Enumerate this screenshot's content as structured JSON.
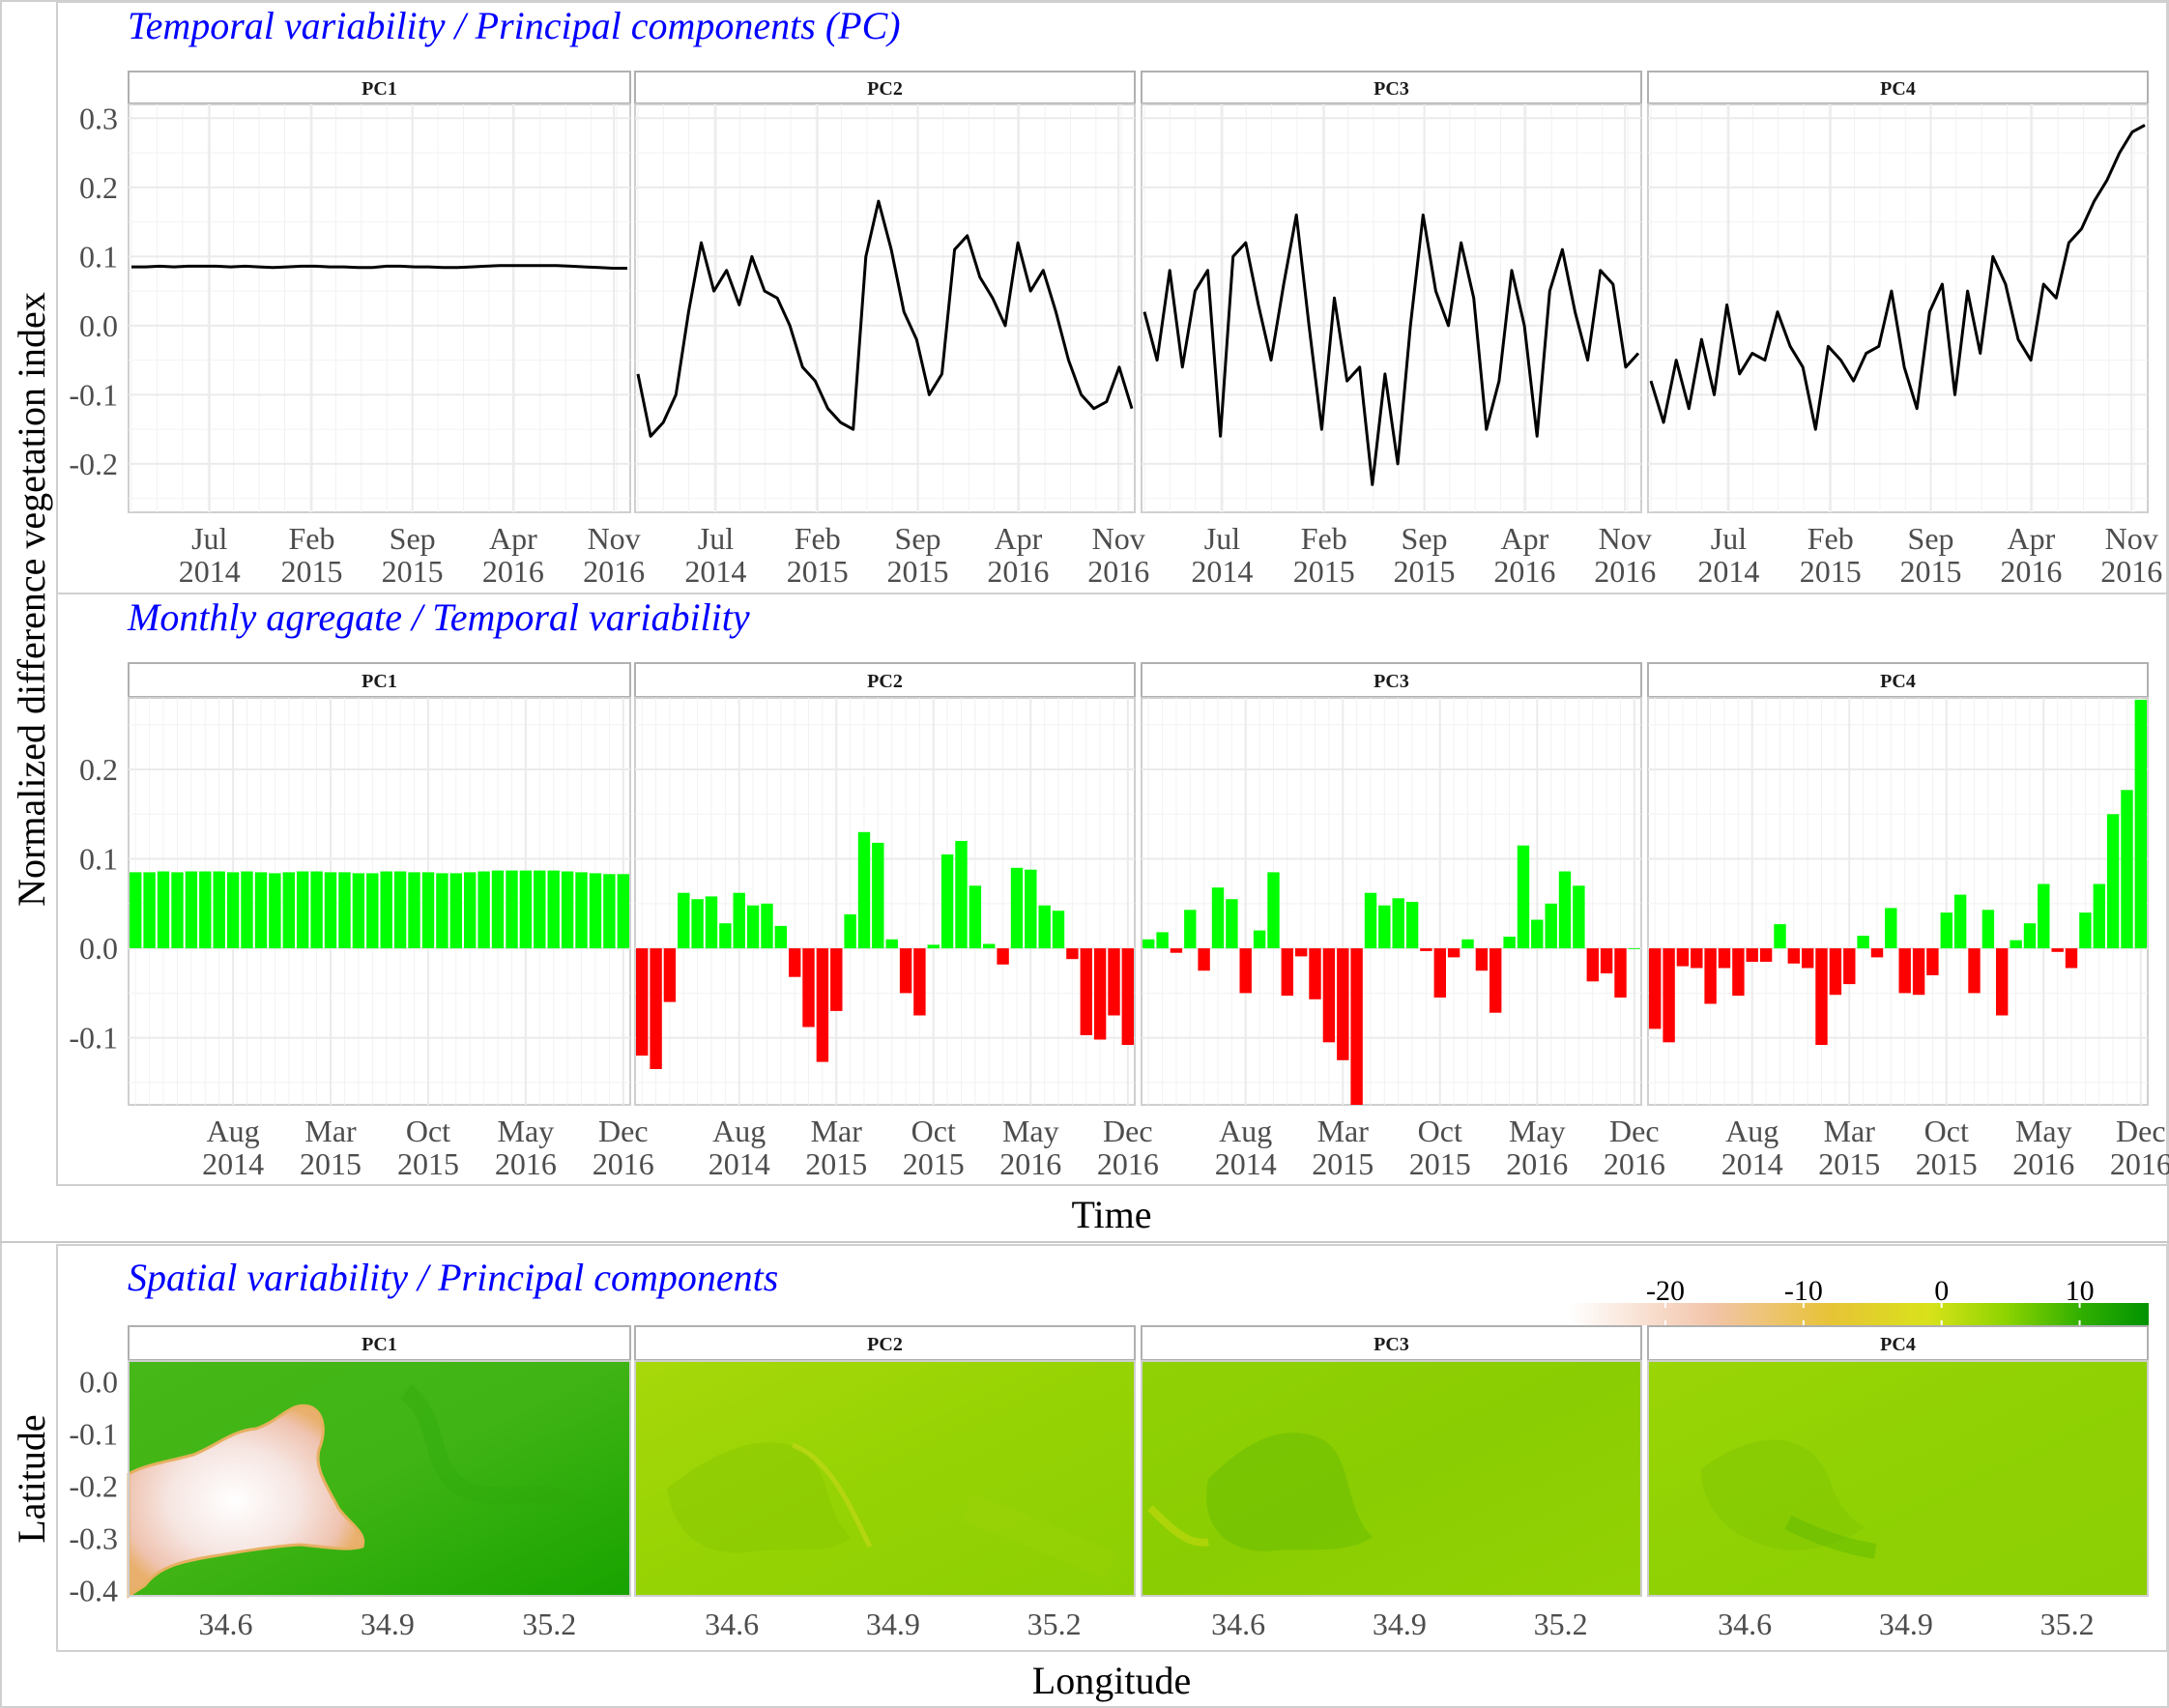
{
  "sections": {
    "temporal_title": "Temporal variability / Principal components (PC)",
    "monthly_title": "Monthly agregate / Temporal variability",
    "spatial_title": "Spatial variability / Principal components"
  },
  "panel_labels": [
    "PC1",
    "PC2",
    "PC3",
    "PC4"
  ],
  "axes": {
    "shared_y_title": "Normalized difference vegetation index",
    "time_title": "Time",
    "latitude_title": "Latitude",
    "longitude_title": "Longitude"
  },
  "colors": {
    "line": "#000000",
    "bar_positive": "#00ff00",
    "bar_negative": "#ff0000",
    "title_blue": "#0000ff",
    "strip_bg": "#ffffff",
    "grid": "#ebebeb",
    "colorbar_stops": [
      "#ffffff",
      "#f2c4a8",
      "#e7c337",
      "#d9e21a",
      "#8fd400",
      "#33b000",
      "#009300"
    ]
  },
  "chart_data": [
    {
      "type": "line",
      "title": "Temporal variability / Principal components (PC)",
      "ylabel": "Normalized difference vegetation index",
      "ylim": [
        -0.27,
        0.32
      ],
      "yticks": [
        "0.3",
        "0.2",
        "0.1",
        "0.0",
        "-0.1",
        "-0.2"
      ],
      "ytick_values": [
        0.3,
        0.2,
        0.1,
        0.0,
        -0.1,
        -0.2
      ],
      "xticks": [
        "Jul\n2014",
        "Feb\n2015",
        "Sep\n2015",
        "Apr\n2016",
        "Nov\n2016"
      ],
      "xrange": [
        "2014-01",
        "2016-12"
      ],
      "series": [
        {
          "name": "PC1",
          "values": [
            0.085,
            0.085,
            0.086,
            0.085,
            0.086,
            0.086,
            0.086,
            0.085,
            0.086,
            0.085,
            0.084,
            0.085,
            0.086,
            0.086,
            0.085,
            0.085,
            0.084,
            0.084,
            0.086,
            0.086,
            0.085,
            0.085,
            0.084,
            0.084,
            0.085,
            0.086,
            0.087,
            0.087,
            0.087,
            0.087,
            0.087,
            0.086,
            0.085,
            0.084,
            0.083,
            0.083
          ]
        },
        {
          "name": "PC2",
          "values": [
            -0.07,
            -0.16,
            -0.14,
            -0.1,
            0.02,
            0.12,
            0.05,
            0.08,
            0.03,
            0.1,
            0.05,
            0.04,
            0.0,
            -0.06,
            -0.08,
            -0.12,
            -0.14,
            -0.15,
            0.1,
            0.18,
            0.11,
            0.02,
            -0.02,
            -0.1,
            -0.07,
            0.11,
            0.13,
            0.07,
            0.04,
            0.0,
            0.12,
            0.05,
            0.08,
            0.02,
            -0.05,
            -0.1,
            -0.12,
            -0.11,
            -0.06,
            -0.12
          ]
        },
        {
          "name": "PC3",
          "values": [
            0.02,
            -0.05,
            0.08,
            -0.06,
            0.05,
            0.08,
            -0.16,
            0.1,
            0.12,
            0.03,
            -0.05,
            0.06,
            0.16,
            0.0,
            -0.15,
            0.04,
            -0.08,
            -0.06,
            -0.23,
            -0.07,
            -0.2,
            0.0,
            0.16,
            0.05,
            0.0,
            0.12,
            0.04,
            -0.15,
            -0.08,
            0.08,
            0.0,
            -0.16,
            0.05,
            0.11,
            0.02,
            -0.05,
            0.08,
            0.06,
            -0.06,
            -0.04
          ]
        },
        {
          "name": "PC4",
          "values": [
            -0.08,
            -0.14,
            -0.05,
            -0.12,
            -0.02,
            -0.1,
            0.03,
            -0.07,
            -0.04,
            -0.05,
            0.02,
            -0.03,
            -0.06,
            -0.15,
            -0.03,
            -0.05,
            -0.08,
            -0.04,
            -0.03,
            0.05,
            -0.06,
            -0.12,
            0.02,
            0.06,
            -0.1,
            0.05,
            -0.04,
            0.1,
            0.06,
            -0.02,
            -0.05,
            0.06,
            0.04,
            0.12,
            0.14,
            0.18,
            0.21,
            0.25,
            0.28,
            0.29
          ]
        }
      ]
    },
    {
      "type": "bar",
      "title": "Monthly agregate / Temporal variability",
      "xlabel": "Time",
      "ylim": [
        -0.175,
        0.28
      ],
      "yticks": [
        "0.2",
        "0.1",
        "0.0",
        "-0.1"
      ],
      "ytick_values": [
        0.2,
        0.1,
        0.0,
        -0.1
      ],
      "xticks": [
        "Aug\n2014",
        "Mar\n2015",
        "Oct\n2015",
        "May\n2016",
        "Dec\n2016"
      ],
      "categories": [
        "2014-01",
        "2014-02",
        "2014-03",
        "2014-04",
        "2014-05",
        "2014-06",
        "2014-07",
        "2014-08",
        "2014-09",
        "2014-10",
        "2014-11",
        "2014-12",
        "2015-01",
        "2015-02",
        "2015-03",
        "2015-04",
        "2015-05",
        "2015-06",
        "2015-07",
        "2015-08",
        "2015-09",
        "2015-10",
        "2015-11",
        "2015-12",
        "2016-01",
        "2016-02",
        "2016-03",
        "2016-04",
        "2016-05",
        "2016-06",
        "2016-07",
        "2016-08",
        "2016-09",
        "2016-10",
        "2016-11",
        "2016-12"
      ],
      "series": [
        {
          "name": "PC1",
          "values": [
            0.085,
            0.085,
            0.086,
            0.085,
            0.086,
            0.086,
            0.086,
            0.085,
            0.086,
            0.085,
            0.084,
            0.085,
            0.086,
            0.086,
            0.085,
            0.085,
            0.084,
            0.084,
            0.086,
            0.086,
            0.085,
            0.085,
            0.084,
            0.084,
            0.085,
            0.086,
            0.087,
            0.087,
            0.087,
            0.087,
            0.087,
            0.086,
            0.085,
            0.084,
            0.083,
            0.083
          ]
        },
        {
          "name": "PC2",
          "values": [
            -0.12,
            -0.135,
            -0.06,
            0.062,
            0.055,
            0.058,
            0.028,
            0.062,
            0.048,
            0.05,
            0.025,
            -0.032,
            -0.088,
            -0.127,
            -0.07,
            0.038,
            0.13,
            0.118,
            0.01,
            -0.05,
            -0.075,
            0.004,
            0.105,
            0.12,
            0.07,
            0.005,
            -0.018,
            0.09,
            0.088,
            0.048,
            0.042,
            -0.012,
            -0.097,
            -0.102,
            -0.075,
            -0.108
          ]
        },
        {
          "name": "PC3",
          "values": [
            0.01,
            0.018,
            -0.005,
            0.043,
            -0.025,
            0.068,
            0.055,
            -0.05,
            0.02,
            0.085,
            -0.053,
            -0.009,
            -0.057,
            -0.105,
            -0.125,
            -0.175,
            0.062,
            0.048,
            0.056,
            0.052,
            -0.003,
            -0.055,
            -0.01,
            0.01,
            -0.025,
            -0.072,
            0.013,
            0.115,
            0.032,
            0.05,
            0.086,
            0.07,
            -0.037,
            -0.028,
            -0.055,
            0.0
          ]
        },
        {
          "name": "PC4",
          "values": [
            -0.09,
            -0.105,
            -0.02,
            -0.022,
            -0.062,
            -0.022,
            -0.053,
            -0.015,
            -0.015,
            0.027,
            -0.017,
            -0.022,
            -0.108,
            -0.052,
            -0.04,
            0.014,
            -0.01,
            0.045,
            -0.05,
            -0.052,
            -0.03,
            0.04,
            0.06,
            -0.05,
            0.043,
            -0.075,
            0.009,
            0.028,
            0.072,
            -0.004,
            -0.022,
            0.04,
            0.072,
            0.15,
            0.177,
            0.278
          ]
        }
      ]
    },
    {
      "type": "heatmap",
      "title": "Spatial variability / Principal components",
      "xlabel": "Longitude",
      "ylabel": "Latitude",
      "xlim": [
        34.42,
        35.35
      ],
      "ylim": [
        -0.41,
        0.04
      ],
      "xticks": [
        "34.6",
        "34.9",
        "35.2"
      ],
      "xtick_values": [
        34.6,
        34.9,
        35.2
      ],
      "yticks": [
        "0.0",
        "-0.1",
        "-0.2",
        "-0.3",
        "-0.4"
      ],
      "ytick_values": [
        0.0,
        -0.1,
        -0.2,
        -0.3,
        -0.4
      ],
      "colorbar": {
        "labels": [
          "-20",
          "-10",
          "0",
          "10"
        ],
        "values": [
          -20,
          -10,
          0,
          10
        ],
        "range": [
          -27,
          15
        ]
      },
      "panels": [
        "PC1",
        "PC2",
        "PC3",
        "PC4"
      ]
    }
  ]
}
